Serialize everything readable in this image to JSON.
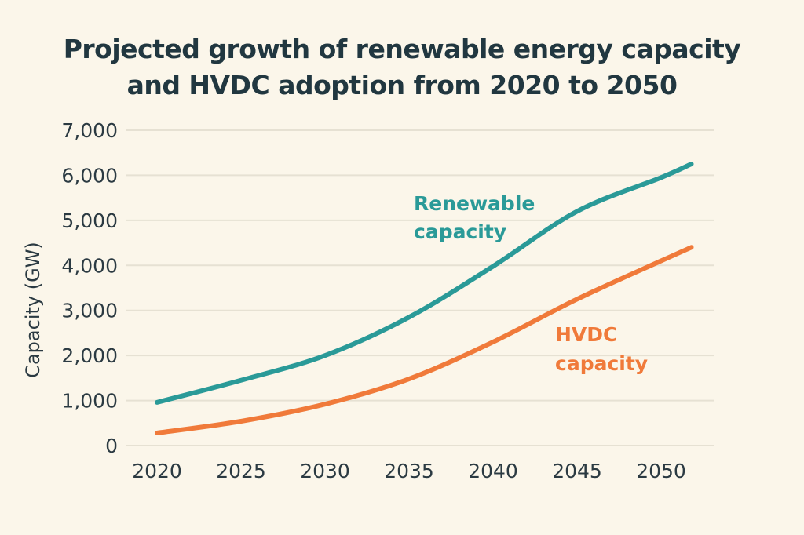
{
  "chart_data": {
    "type": "line",
    "title_lines": [
      "Projected growth of renewable energy capacity",
      "and HVDC adoption from 2020 to 2050"
    ],
    "xlabel": "",
    "ylabel": "Capacity (GW)",
    "xlim": [
      2020,
      2052
    ],
    "ylim": [
      0,
      7000
    ],
    "grid": true,
    "x_ticks": [
      2020,
      2025,
      2030,
      2035,
      2040,
      2045,
      2050
    ],
    "x_tick_labels": [
      "2020",
      "2025",
      "2030",
      "2035",
      "2040",
      "2045",
      "2050"
    ],
    "y_ticks": [
      0,
      1000,
      2000,
      3000,
      4000,
      5000,
      6000,
      7000
    ],
    "y_tick_labels": [
      "0",
      "1,000",
      "2,000",
      "3,000",
      "4,000",
      "5,000",
      "6,000",
      "7,000"
    ],
    "series": [
      {
        "name": "Renewable capacity",
        "label_lines": [
          "Renewable",
          "capacity"
        ],
        "color": "#2a9a98",
        "x": [
          2020,
          2025,
          2030,
          2035,
          2040,
          2045,
          2050,
          2051.8
        ],
        "y": [
          960,
          1450,
          2000,
          2850,
          3980,
          5200,
          5950,
          6250
        ]
      },
      {
        "name": "HVDC capacity",
        "label_lines": [
          "HVDC",
          "capacity"
        ],
        "color": "#f07a3a",
        "x": [
          2020,
          2025,
          2030,
          2035,
          2040,
          2045,
          2050,
          2051.8
        ],
        "y": [
          280,
          540,
          920,
          1480,
          2300,
          3250,
          4100,
          4400
        ]
      }
    ]
  }
}
